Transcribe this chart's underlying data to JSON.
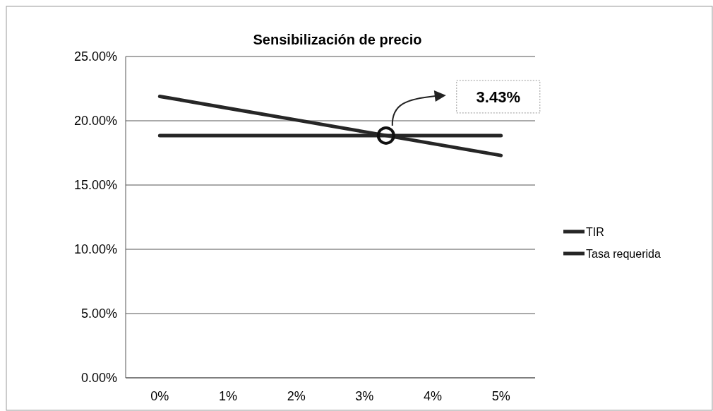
{
  "chart_data": {
    "type": "line",
    "title": "Sensibilización de precio",
    "categories": [
      "0%",
      "1%",
      "2%",
      "3%",
      "4%",
      "5%"
    ],
    "series": [
      {
        "name": "TIR",
        "color": "#262626",
        "values": [
          21.9,
          20.98,
          20.06,
          19.14,
          18.22,
          17.3
        ]
      },
      {
        "name": "Tasa requerida",
        "color": "#262626",
        "values": [
          18.85,
          18.85,
          18.85,
          18.85,
          18.85,
          18.85
        ]
      }
    ],
    "ylim": [
      0,
      25
    ],
    "yticks": [
      {
        "value": 0,
        "label": "0.00%"
      },
      {
        "value": 5,
        "label": "5.00%"
      },
      {
        "value": 10,
        "label": "10.00%"
      },
      {
        "value": 15,
        "label": "15.00%"
      },
      {
        "value": 20,
        "label": "20.00%"
      },
      {
        "value": 25,
        "label": "25.00%"
      }
    ],
    "grid": "y",
    "legend": "right",
    "marker": "none",
    "line_style": "solid",
    "annotations": [
      "3.43%"
    ]
  }
}
